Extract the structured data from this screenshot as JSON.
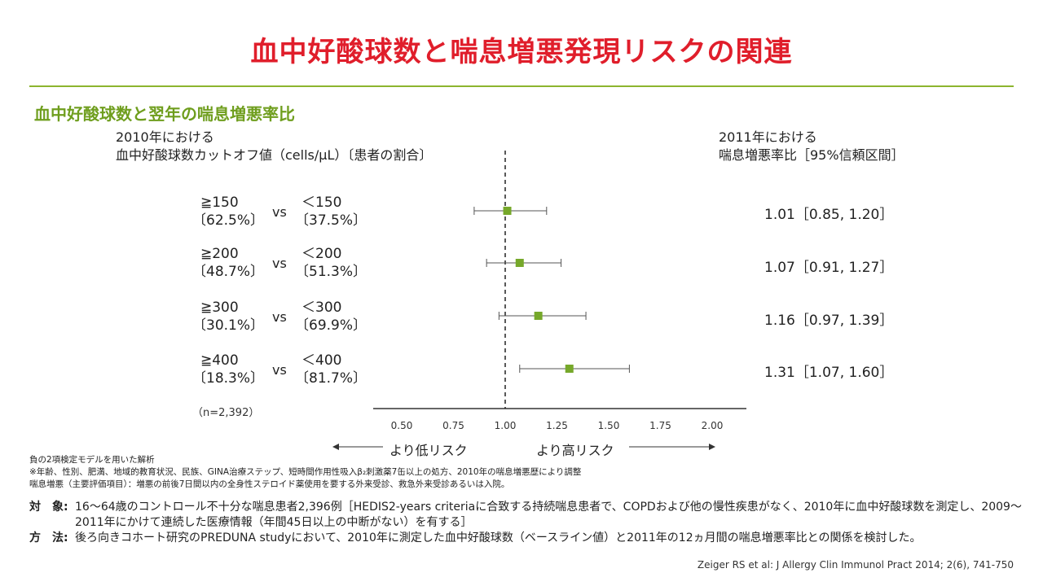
{
  "title": "血中好酸球数と喘息増悪発現リスクの関連",
  "subtitle": "血中好酸球数と翌年の喘息増悪率比",
  "left_header": {
    "line1": "2010年における",
    "line2": "血中好酸球数カットオフ値（cells/μL）〔患者の割合〕"
  },
  "right_header": {
    "line1": "2011年における",
    "line2": "喘息増悪率比［95%信頼区間］"
  },
  "groups": [
    {
      "high": "≧150",
      "high_pct": "〔62.5%〕",
      "vs": "vs",
      "low": "＜150",
      "low_pct": "〔37.5%〕",
      "ci_text": "1.01［0.85, 1.20］"
    },
    {
      "high": "≧200",
      "high_pct": "〔48.7%〕",
      "vs": "vs",
      "low": "＜200",
      "low_pct": "〔51.3%〕",
      "ci_text": "1.07［0.91, 1.27］"
    },
    {
      "high": "≧300",
      "high_pct": "〔30.1%〕",
      "vs": "vs",
      "low": "＜300",
      "low_pct": "〔69.9%〕",
      "ci_text": "1.16［0.97, 1.39］"
    },
    {
      "high": "≧400",
      "high_pct": "〔18.3%〕",
      "vs": "vs",
      "low": "＜400",
      "low_pct": "〔81.7%〕",
      "ci_text": "1.31［1.07, 1.60］"
    }
  ],
  "n_label": "（n=2,392）",
  "chart_data": {
    "type": "forest",
    "reference_line": 1.0,
    "xlim": [
      0.4,
      2.2
    ],
    "xticks": [
      "0.50",
      "0.75",
      "1.00",
      "1.25",
      "1.50",
      "1.75",
      "2.00"
    ],
    "xtick_values": [
      0.5,
      0.75,
      1.0,
      1.25,
      1.5,
      1.75,
      2.0
    ],
    "points": [
      {
        "estimate": 1.01,
        "lower": 0.85,
        "upper": 1.2
      },
      {
        "estimate": 1.07,
        "lower": 0.91,
        "upper": 1.27
      },
      {
        "estimate": 1.16,
        "lower": 0.97,
        "upper": 1.39
      },
      {
        "estimate": 1.31,
        "lower": 1.07,
        "upper": 1.6
      }
    ],
    "marker_color": "#76a82a"
  },
  "risk_labels": {
    "low": "より低リスク",
    "high": "より高リスク"
  },
  "notes": [
    "負の2項検定モデルを用いた解析",
    "※年齢、性別、肥満、地域的教育状況、民族、GINA治療ステップ、短時間作用性吸入β₂刺激薬7缶以上の処方、2010年の喘息増悪歴により調整",
    "喘息増悪（主要評価項目）：増悪の前後7日間以内の全身性ステロイド薬使用を要する外来受診、救急外来受診あるいは入院。"
  ],
  "methods": [
    {
      "label": "対　象:",
      "text": "16～64歳のコントロール不十分な喘息患者2,396例［HEDIS2-years criteriaに合致する持続喘息患者で、COPDおよび他の慢性疾患がなく、2010年に血中好酸球数を測定し、2009～2011年にかけて連続した医療情報（年間45日以上の中断がない）を有する］"
    },
    {
      "label": "方　法:",
      "text": "後ろ向きコホート研究のPREDUNA studyにおいて、2010年に測定した血中好酸球数（ベースライン値）と2011年の12ヵ月間の喘息増悪率比との関係を検討した。"
    }
  ],
  "citation": "Zeiger RS et al: J Allergy Clin Immunol Pract 2014; 2(6), 741-750",
  "colors": {
    "title": "#e01e2b",
    "accent_green": "#8cb52f",
    "subtitle_green": "#6f9e1e"
  }
}
